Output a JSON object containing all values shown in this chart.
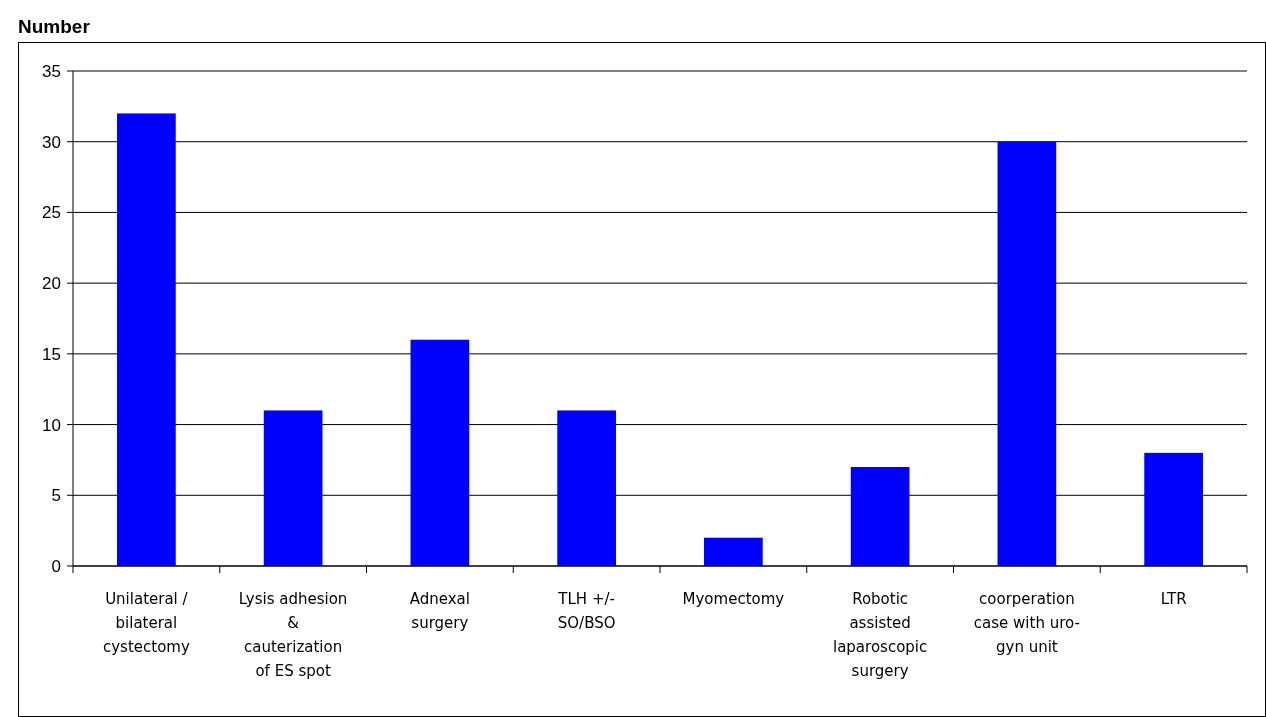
{
  "chart_data": {
    "type": "bar",
    "title": "Number",
    "categories": [
      "Unilateral / bilateral cystectomy",
      "Lysis adhesion & cauterization of ES spot",
      "Adnexal surgery",
      "TLH +/- SO/BSO",
      "Myomectomy",
      "Robotic assisted laparoscopic surgery",
      "coorperation case with uro-gyn unit",
      "LTR"
    ],
    "values": [
      32,
      11,
      16,
      11,
      2,
      7,
      30,
      8
    ],
    "color": "#0000ff",
    "ylim": [
      0,
      35
    ],
    "yticks": [
      0,
      5,
      10,
      15,
      20,
      25,
      30,
      35
    ],
    "grid": "y"
  }
}
